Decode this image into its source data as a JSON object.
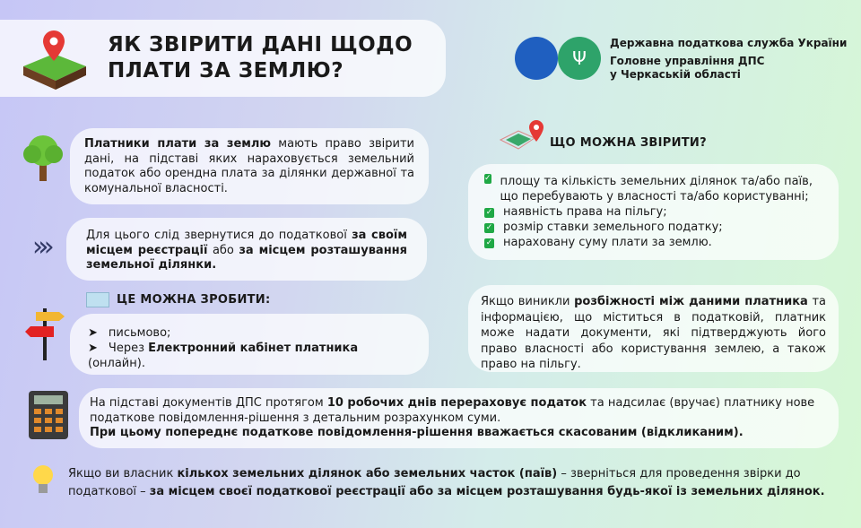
{
  "title": {
    "line1": "ЯК ЗВІРИТИ ДАНІ ЩОДО",
    "line2": "ПЛАТИ ЗА ЗЕМЛЮ?"
  },
  "org": {
    "line1": "Державна податкова служба України",
    "line2": "Головне управління ДПС",
    "line3": "у Черкаській області"
  },
  "colors": {
    "logo_blue": "#1f5fc0",
    "logo_green": "#2ea36a",
    "check_green": "#1fa845"
  },
  "block1": {
    "bold": "Платники плати за землю",
    "text": " мають право звірити дані, на підставі яких нараховується земельний податок або орендна плата за ділянки державної та комунальної власності."
  },
  "block2": {
    "t1": "Для цього слід звернутися до податкової ",
    "b1": "за своїм місцем реєстрації",
    "t2": " або ",
    "b2": "за місцем розташування земельної ділянки."
  },
  "how": {
    "heading": "ЦЕ МОЖНА ЗРОБИТИ:",
    "item1": "письмово;",
    "item2_pre": "Через ",
    "item2_bold": "Електронний кабінет платника",
    "item2_post": " (онлайн)."
  },
  "check": {
    "heading": "ЩО МОЖНА ЗВІРИТИ?",
    "items": [
      "площу та кількість земельних ділянок та/або паїв, що перебувають у власності та/або користуванні;",
      "наявність права на пільгу;",
      "розмір ставки земельного податку;",
      "нараховану суму плати за землю."
    ]
  },
  "discrepancy": {
    "t1": "Якщо виникли ",
    "b1": "розбіжності між даними платника",
    "t2": " та інформацією, що міститься в податковій, платник може надати документи, які підтверджують його право власності або користування землею, а також право на пільгу."
  },
  "recalc": {
    "t1": "На підставі документів ДПС протягом ",
    "b1": "10 робочих днів перераховує податок",
    "t2": " та надсилає (вручає) платнику нове податкове повідомлення-рішення з детальним розрахунком суми.",
    "b2": "При цьому попереднє податкове повідомлення-рішення вважається скасованим (відкликаним)."
  },
  "tip": {
    "t1": "Якщо ви власник ",
    "b1": "кількох земельних ділянок або земельних часток (паїв)",
    "t2": " – зверніться для проведення звірки до податкової – ",
    "b2": "за місцем своєї податкової реєстрації або за місцем розташування будь-якої із земельних ділянок."
  }
}
